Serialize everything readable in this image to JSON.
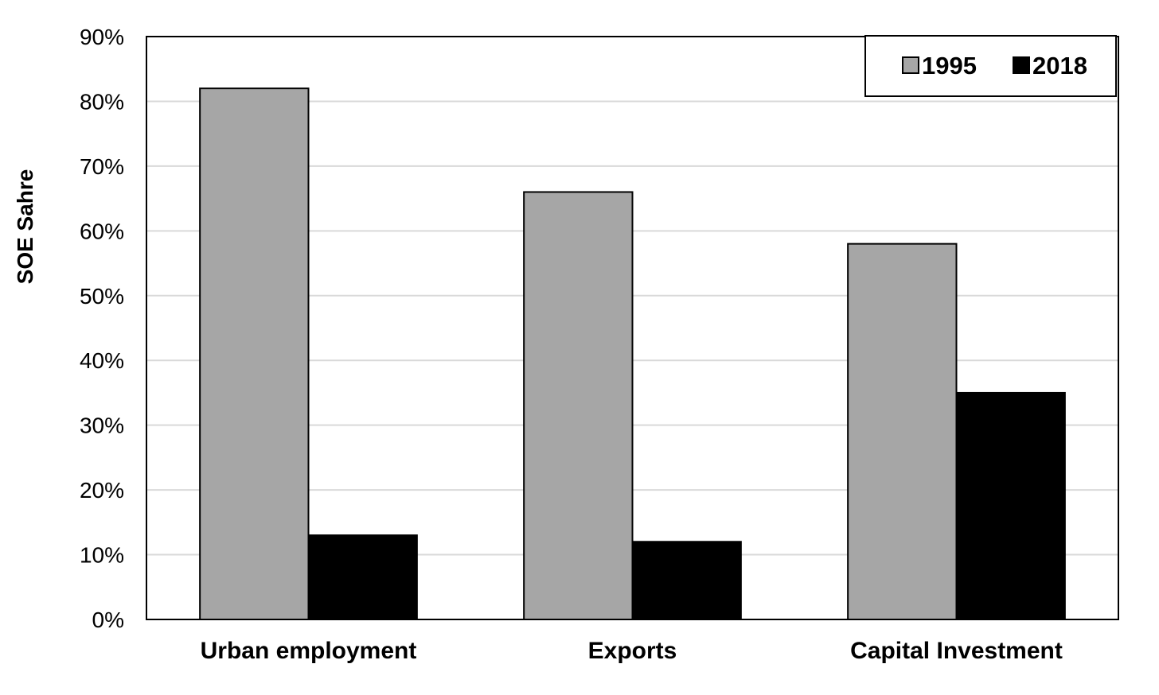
{
  "chart_data": {
    "type": "bar",
    "title": "",
    "xlabel": "",
    "ylabel": "SOE Sahre",
    "categories": [
      "Urban employment",
      "Exports",
      "Capital Investment"
    ],
    "series": [
      {
        "name": "1995",
        "values": [
          82,
          66,
          58
        ],
        "color": "#a6a6a6"
      },
      {
        "name": "2018",
        "values": [
          13,
          12,
          35
        ],
        "color": "#000000"
      }
    ],
    "ylim": [
      0,
      90
    ],
    "yticks": [
      0,
      10,
      20,
      30,
      40,
      50,
      60,
      70,
      80,
      90
    ],
    "ytick_labels": [
      "0%",
      "10%",
      "20%",
      "30%",
      "40%",
      "50%",
      "60%",
      "70%",
      "80%",
      "90%"
    ],
    "grid": true,
    "gridline_color": "#d9d9d9",
    "legend_position": "top-right"
  }
}
